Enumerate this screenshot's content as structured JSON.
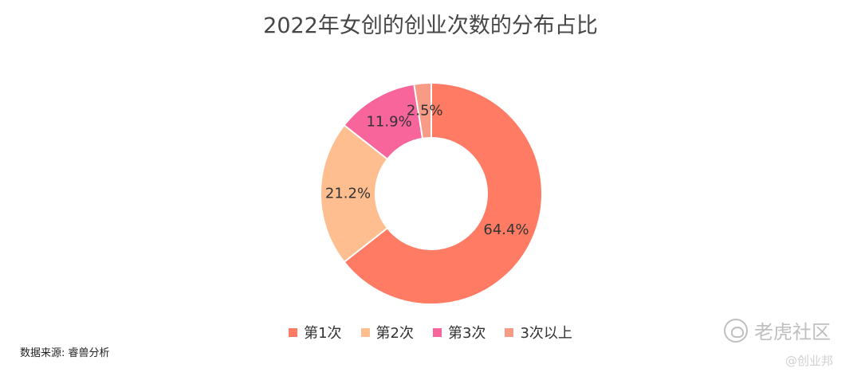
{
  "chart_data": {
    "type": "pie",
    "title": "2022年女创的创业次数的分布占比",
    "categories": [
      "第1次",
      "第2次",
      "第3次",
      "3次以上"
    ],
    "values": [
      64.4,
      21.2,
      11.9,
      2.5
    ],
    "labels": [
      "64.4%",
      "21.2%",
      "11.9%",
      "2.5%"
    ],
    "colors": [
      "#FF7B63",
      "#FFBE8F",
      "#F7659B",
      "#F79A86"
    ],
    "donut": true,
    "legend_position": "bottom"
  },
  "source": "数据来源: 睿兽分析",
  "watermark": {
    "main": "老虎社区",
    "sub": "@创业邦",
    "logo_icon": "tiger-logo-icon"
  }
}
